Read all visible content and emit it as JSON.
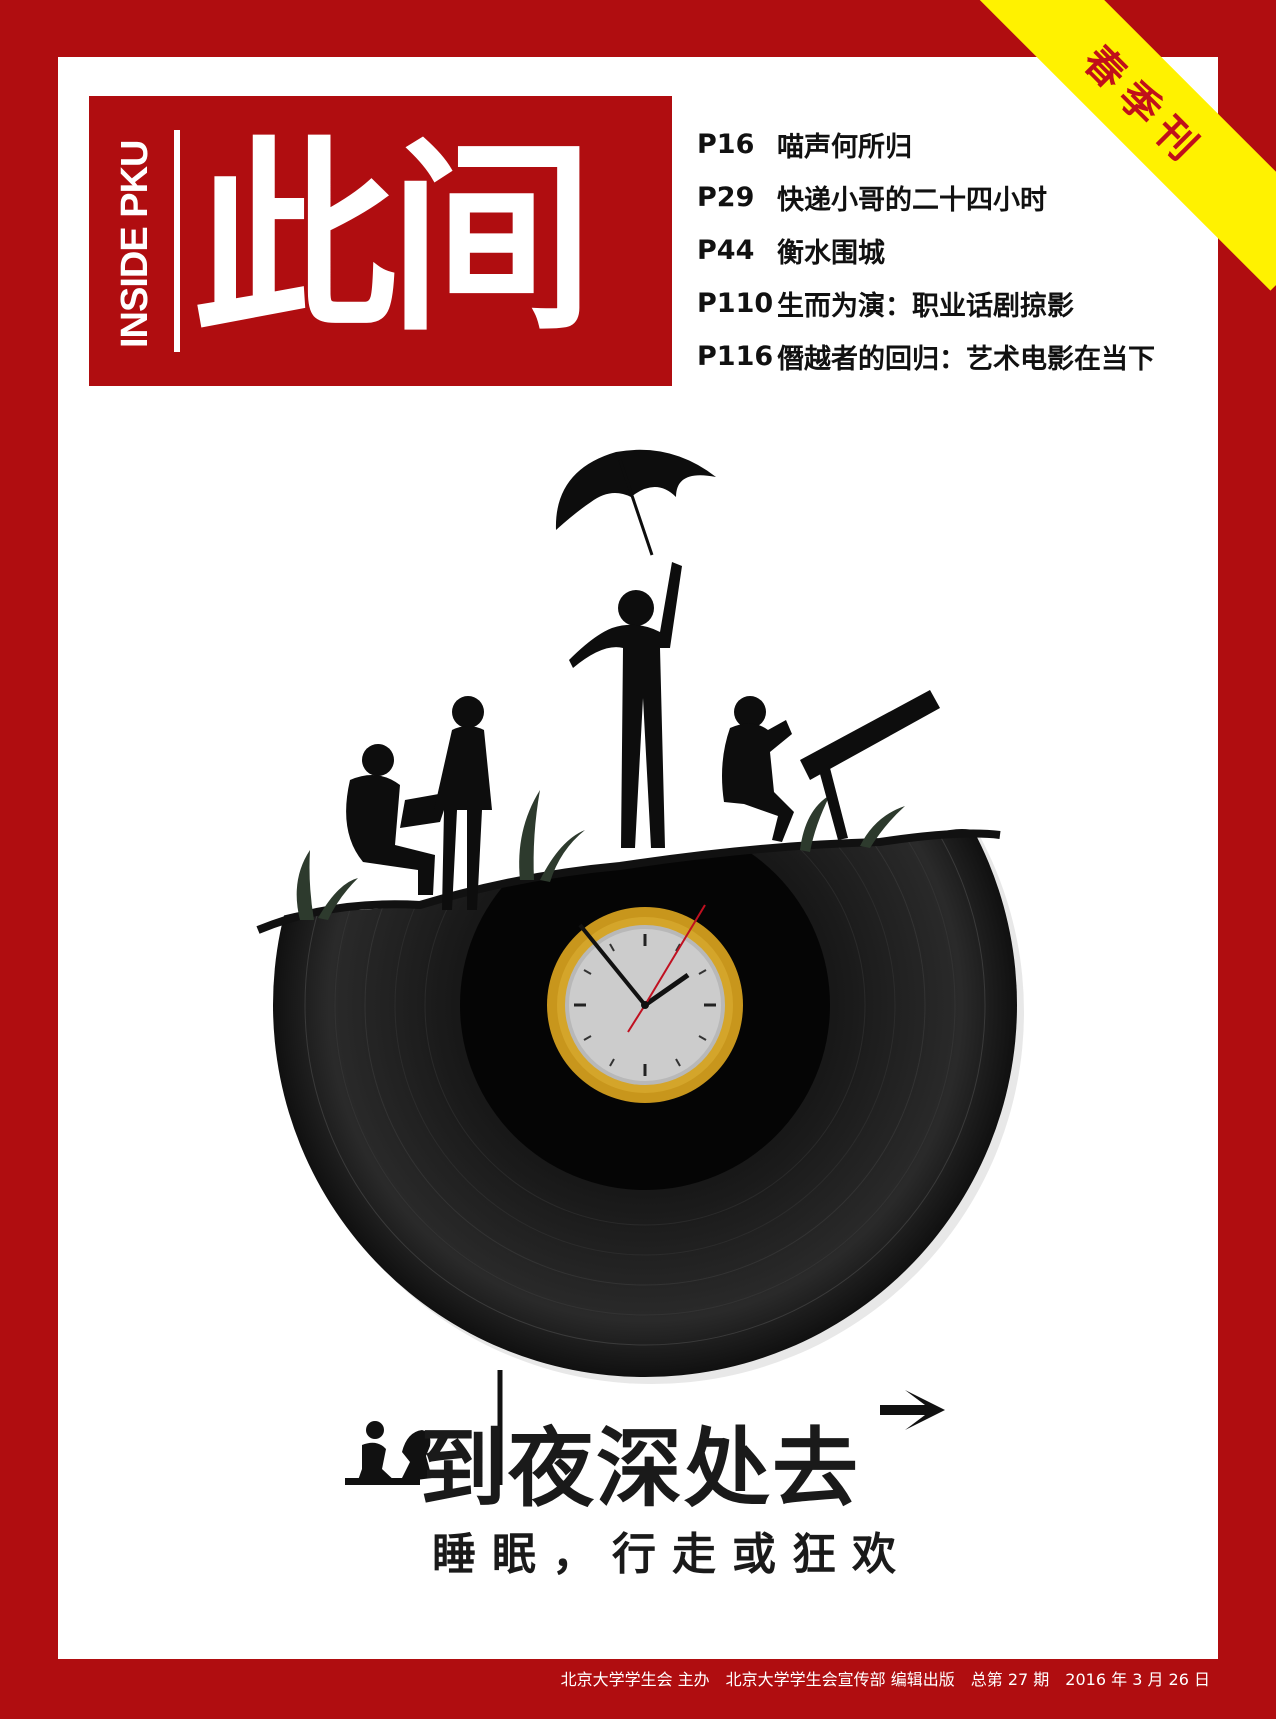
{
  "corner_banner": {
    "label": "春季刊"
  },
  "masthead": {
    "title_zh": "此间",
    "title_en": "INSIDE PKU"
  },
  "toc": [
    {
      "page": "P16",
      "title": "喵声何所归"
    },
    {
      "page": "P29",
      "title": "快递小哥的二十四小时"
    },
    {
      "page": "P44",
      "title": "衡水围城"
    },
    {
      "page": "P110",
      "title": "生而为演：职业话剧掠影"
    },
    {
      "page": "P116",
      "title": "僭越者的回归：艺术电影在当下"
    }
  ],
  "cover_story": {
    "headline": "到夜深处去",
    "subline": "睡眠，行走或狂欢"
  },
  "footer": {
    "text": "北京大学学生会 主办　北京大学学生会宣传部 编辑出版　总第 27 期　2016 年 3 月 26 日"
  },
  "colors": {
    "border": "#b00d10",
    "banner": "#fff200",
    "banner_text": "#c0101a",
    "clock_rim": "#c8961c"
  }
}
